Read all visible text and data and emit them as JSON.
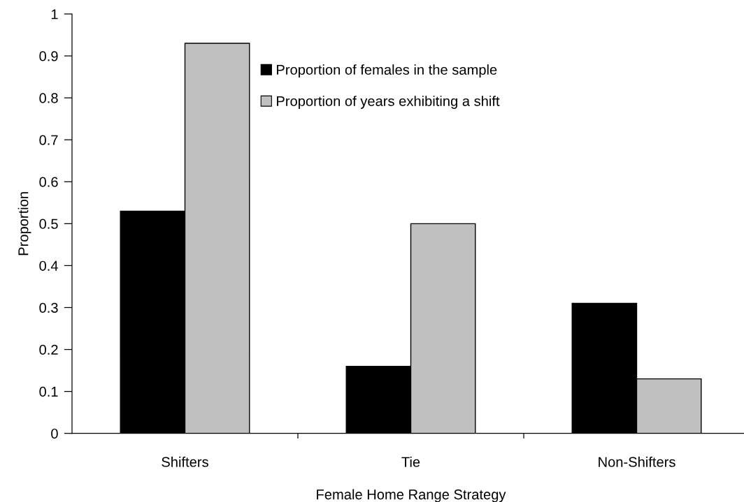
{
  "chart_data": {
    "type": "bar",
    "xlabel": "Female Home Range Strategy",
    "ylabel": "Proportion",
    "categories": [
      "Shifters",
      "Tie",
      "Non-Shifters"
    ],
    "series": [
      {
        "name": "Proportion of females in the sample",
        "color": "#000000",
        "values": [
          0.53,
          0.16,
          0.31
        ]
      },
      {
        "name": "Proportion of years exhibiting a shift",
        "color": "#c0c0c0",
        "values": [
          0.93,
          0.5,
          0.13
        ]
      }
    ],
    "ylim": [
      0,
      1
    ],
    "yticks": [
      0,
      0.1,
      0.2,
      0.3,
      0.4,
      0.5,
      0.6,
      0.7,
      0.8,
      0.9,
      1
    ],
    "grid": false,
    "legend": "top"
  }
}
